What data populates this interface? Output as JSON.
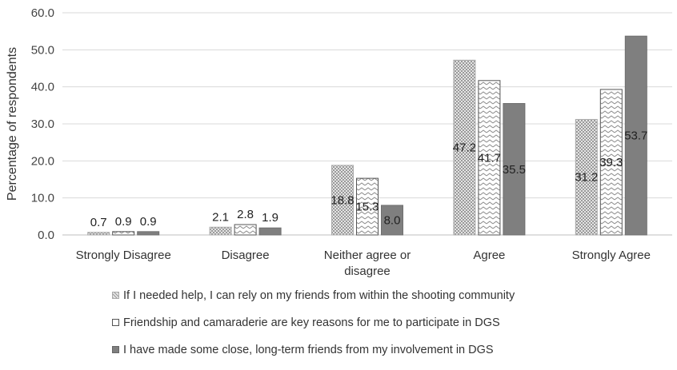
{
  "chart_data": {
    "type": "bar",
    "categories": [
      "Strongly Disagree",
      "Disagree",
      "Neither agree or disagree",
      "Agree",
      "Strongly Agree"
    ],
    "category_lines": [
      [
        "Strongly Disagree"
      ],
      [
        "Disagree"
      ],
      [
        "Neither agree or",
        "disagree"
      ],
      [
        "Agree"
      ],
      [
        "Strongly Agree"
      ]
    ],
    "series": [
      {
        "name": "If I needed help, I can rely on my friends from within the shooting community",
        "values": [
          0.7,
          2.1,
          18.8,
          47.2,
          31.2
        ],
        "labels": [
          "0.7",
          "2.1",
          "18.8",
          "47.2",
          "31.2"
        ],
        "pattern": "dots",
        "color": "#c8c8c8"
      },
      {
        "name": "Friendship and camaraderie are key reasons for me to participate in DGS",
        "values": [
          0.9,
          2.8,
          15.3,
          41.7,
          39.3
        ],
        "labels": [
          "0.9",
          "2.8",
          "15.3",
          "41.7",
          "39.3"
        ],
        "pattern": "zigzag",
        "color": "#ffffff"
      },
      {
        "name": "I have made some close, long-term friends from my involvement in DGS",
        "values": [
          0.9,
          1.9,
          8.0,
          35.5,
          53.7
        ],
        "labels": [
          "0.9",
          "1.9",
          "8.0",
          "35.5",
          "53.7"
        ],
        "pattern": "solid",
        "color": "#7f7f7f"
      }
    ],
    "ylabel": "Percentage of respondents",
    "ylim": [
      0,
      60
    ],
    "yticks": [
      "0.0",
      "10.0",
      "20.0",
      "30.0",
      "40.0",
      "50.0",
      "60.0"
    ],
    "grid": true,
    "legend_position": "bottom"
  }
}
